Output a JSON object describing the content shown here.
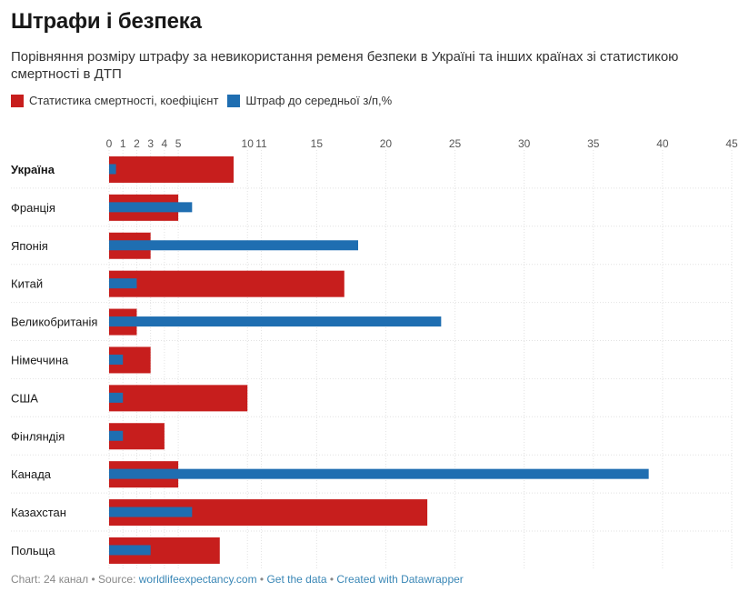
{
  "title": "Штрафи і безпека",
  "subtitle": "Порівняння розміру штрафу за невикористання ременя безпеки в Україні та інших країнах зі статистикою смертності в ДТП",
  "legend": [
    {
      "label": "Статистика смертності, коефіцієнт",
      "color": "#c71e1d"
    },
    {
      "label": "Штраф до середньої з/п,%",
      "color": "#1f6eb1"
    }
  ],
  "footer": {
    "prefix": "Chart: 24 канал • Source: ",
    "source": "worldlifeexpectancy.com",
    "sep1": " • ",
    "get_data": "Get the data",
    "sep2": " • ",
    "created": "Created with Datawrapper"
  },
  "chart_data": {
    "type": "bar",
    "orientation": "horizontal",
    "xlim": [
      0,
      45
    ],
    "ticks": [
      0,
      1,
      2,
      3,
      4,
      5,
      10,
      11,
      15,
      20,
      25,
      30,
      35,
      40,
      45
    ],
    "tick_labels": [
      "0",
      "1",
      "2",
      "3",
      "4",
      "5",
      "10",
      "11",
      "15",
      "20",
      "25",
      "30",
      "35",
      "40",
      "45"
    ],
    "categories": [
      "Україна",
      "Франція",
      "Японія",
      "Китай",
      "Великобританія",
      "Німеччина",
      "США",
      "Фінляндія",
      "Канада",
      "Казахстан",
      "Польща"
    ],
    "highlight": "Україна",
    "series": [
      {
        "name": "Статистика смертності, коефіцієнт",
        "color": "#c71e1d",
        "values": [
          9,
          5,
          3,
          17,
          2,
          3,
          10,
          4,
          5,
          23,
          8
        ]
      },
      {
        "name": "Штраф до середньої з/п,%",
        "color": "#1f6eb1",
        "values": [
          0.5,
          6,
          18,
          2,
          24,
          1,
          1,
          1,
          39,
          6,
          3
        ]
      }
    ]
  }
}
